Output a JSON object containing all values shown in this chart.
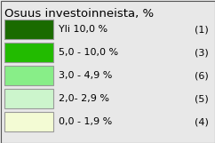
{
  "title": "Osuus investoinneista, %",
  "title_fontsize": 9.5,
  "background_color": "#e8e8e8",
  "legend_items": [
    {
      "label": "Yli 10,0 %",
      "count": "(1)",
      "color": "#1a6b00"
    },
    {
      "label": "5,0 - 10,0 %",
      "count": "(3)",
      "color": "#22bb00"
    },
    {
      "label": "3,0 - 4,9 %",
      "count": "(6)",
      "color": "#88ee88"
    },
    {
      "label": "2,0- 2,9 %",
      "count": "(5)",
      "color": "#ccf5cc"
    },
    {
      "label": "0,0 - 1,9 %",
      "count": "(4)",
      "color": "#f3fbd4"
    }
  ],
  "box_edge_color": "#999999",
  "text_color": "#000000",
  "label_fontsize": 8.0,
  "count_fontsize": 8.0,
  "border_color": "#555555",
  "border_linewidth": 0.8
}
